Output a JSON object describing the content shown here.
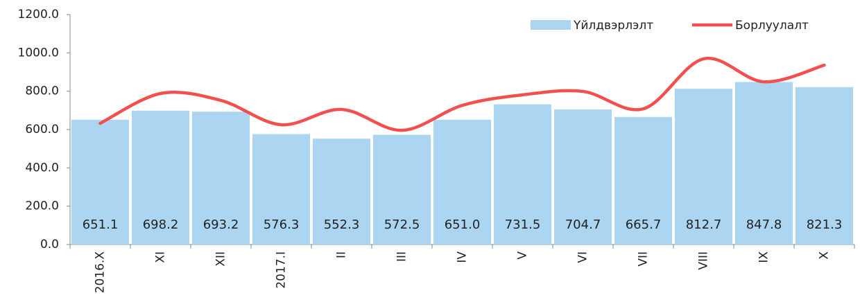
{
  "chart_data": {
    "type": "bar_line",
    "categories": [
      "2016.X",
      "XI",
      "XII",
      "2017.I",
      "II",
      "III",
      "IV",
      "V",
      "VI",
      "VII",
      "VIII",
      "IX",
      "X"
    ],
    "series": [
      {
        "name": "Үйлдвэрлэлт",
        "type": "bar",
        "color": "#abd5f0",
        "values": [
          651.1,
          698.2,
          693.2,
          576.3,
          552.3,
          572.5,
          651.0,
          731.5,
          704.7,
          665.7,
          812.7,
          847.8,
          821.3
        ],
        "value_labels": [
          "651.1",
          "698.2",
          "693.2",
          "576.3",
          "552.3",
          "572.5",
          "651.0",
          "731.5",
          "704.7",
          "665.7",
          "812.7",
          "847.8",
          "821.3"
        ]
      },
      {
        "name": "Борлуулалт",
        "type": "line",
        "color": "#f2504f",
        "values": [
          632,
          788,
          752,
          625,
          705,
          596,
          726,
          781,
          799,
          708,
          969,
          849,
          936
        ]
      }
    ],
    "ylim": [
      0,
      1200
    ],
    "yticks": [
      {
        "value": 0,
        "label": "0.0"
      },
      {
        "value": 200,
        "label": "200.0"
      },
      {
        "value": 400,
        "label": "400.0"
      },
      {
        "value": 600,
        "label": "600.0"
      },
      {
        "value": 800,
        "label": "800.0"
      },
      {
        "value": 1000,
        "label": "1000.0"
      },
      {
        "value": 1200,
        "label": "1200.0"
      }
    ],
    "grid": false,
    "legend": "upper right"
  }
}
